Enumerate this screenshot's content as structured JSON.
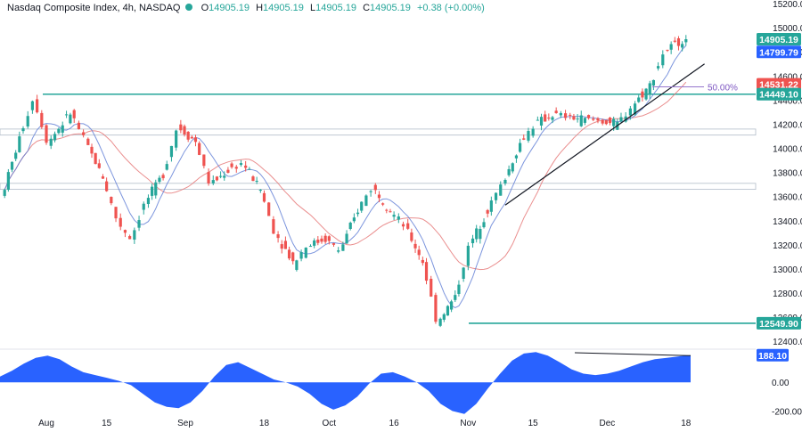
{
  "header": {
    "title": "Nasdaq Composite Index, 4h, NASDAQ",
    "open_label": "O",
    "open": "14905.19",
    "high_label": "H",
    "high": "14905.19",
    "low_label": "L",
    "low": "14905.19",
    "close_label": "C",
    "close": "14905.19",
    "change": "+0.38 (+0.00%)"
  },
  "colors": {
    "up": "#26a69a",
    "down": "#ef5350",
    "hline": "#26a69a",
    "ma_fast": "#5b7bd5",
    "ma_slow": "#e57373",
    "oscillator": "#2962ff",
    "trendline": "#131722"
  },
  "chart_data": [
    {
      "type": "candlestick",
      "timeframe": "4h",
      "y_axis_ticks": [
        "15200.00",
        "15000.00",
        "14800.00",
        "14600.00",
        "14400.00",
        "14200.00",
        "14000.00",
        "13800.00",
        "13600.00",
        "13400.00",
        "13200.00",
        "13000.00",
        "12800.00",
        "12600.00",
        "12400.00"
      ],
      "ylim": [
        12350,
        15230
      ],
      "x_axis_ticks": [
        "Aug",
        "15",
        "Sep",
        "18",
        "Oct",
        "16",
        "Nov",
        "15",
        "Dec",
        "18"
      ],
      "price_labels": [
        {
          "text": "14905.19",
          "value": 14905.19,
          "color": "#26a69a"
        },
        {
          "text": "14799.79",
          "value": 14799.79,
          "color": "#2962ff"
        },
        {
          "text": "14531.22",
          "value": 14531.22,
          "color": "#ef5350"
        },
        {
          "text": "14449.10",
          "value": 14449.1,
          "color": "#26a69a"
        },
        {
          "text": "12549.90",
          "value": 12549.9,
          "color": "#26a69a"
        }
      ],
      "horizontal_levels": [
        14449.1,
        12549.9
      ],
      "zones": [
        [
          14110,
          14160
        ],
        [
          13660,
          13710
        ]
      ],
      "fib_label": "50.00%",
      "fib_level": 14510,
      "key_points": [
        {
          "date": "Jul 24",
          "close": 13600
        },
        {
          "date": "Jul 28",
          "close": 14100
        },
        {
          "date": "Jul 31",
          "close": 14420
        },
        {
          "date": "Aug 3",
          "close": 14050
        },
        {
          "date": "Aug 8",
          "close": 14300
        },
        {
          "date": "Aug 11",
          "close": 14060
        },
        {
          "date": "Aug 15",
          "close": 13750
        },
        {
          "date": "Aug 18",
          "close": 13400
        },
        {
          "date": "Aug 21",
          "close": 13250
        },
        {
          "date": "Aug 24",
          "close": 13550
        },
        {
          "date": "Aug 28",
          "close": 13800
        },
        {
          "date": "Aug 31",
          "close": 14180
        },
        {
          "date": "Sep 4",
          "close": 14050
        },
        {
          "date": "Sep 7",
          "close": 13700
        },
        {
          "date": "Sep 11",
          "close": 13820
        },
        {
          "date": "Sep 14",
          "close": 13880
        },
        {
          "date": "Sep 18",
          "close": 13650
        },
        {
          "date": "Sep 21",
          "close": 13300
        },
        {
          "date": "Sep 25",
          "close": 13050
        },
        {
          "date": "Sep 28",
          "close": 13200
        },
        {
          "date": "Oct 2",
          "close": 13250
        },
        {
          "date": "Oct 5",
          "close": 13150
        },
        {
          "date": "Oct 9",
          "close": 13500
        },
        {
          "date": "Oct 12",
          "close": 13680
        },
        {
          "date": "Oct 16",
          "close": 13480
        },
        {
          "date": "Oct 19",
          "close": 13350
        },
        {
          "date": "Oct 23",
          "close": 13050
        },
        {
          "date": "Oct 26",
          "close": 12560
        },
        {
          "date": "Oct 30",
          "close": 12780
        },
        {
          "date": "Nov 2",
          "close": 13200
        },
        {
          "date": "Nov 6",
          "close": 13500
        },
        {
          "date": "Nov 9",
          "close": 13700
        },
        {
          "date": "Nov 13",
          "close": 14050
        },
        {
          "date": "Nov 16",
          "close": 14200
        },
        {
          "date": "Nov 20",
          "close": 14280
        },
        {
          "date": "Nov 23",
          "close": 14260
        },
        {
          "date": "Nov 27",
          "close": 14240
        },
        {
          "date": "Nov 30",
          "close": 14230
        },
        {
          "date": "Dec 4",
          "close": 14200
        },
        {
          "date": "Dec 7",
          "close": 14350
        },
        {
          "date": "Dec 11",
          "close": 14530
        },
        {
          "date": "Dec 14",
          "close": 14800
        },
        {
          "date": "Dec 18",
          "close": 14905
        }
      ],
      "trendline": [
        {
          "date": "Nov 9",
          "value": 13530
        },
        {
          "date": "Dec 22",
          "value": 14700
        }
      ]
    },
    {
      "type": "area",
      "name": "oscillator",
      "y_axis_ticks": [
        "0.00",
        "-200.00"
      ],
      "ylim": [
        -240,
        230
      ],
      "last_value_label": "188.10",
      "last_value": 188.1,
      "values": [
        40,
        80,
        130,
        170,
        185,
        160,
        110,
        70,
        50,
        30,
        10,
        -20,
        -80,
        -140,
        -170,
        -180,
        -140,
        -60,
        40,
        120,
        140,
        100,
        60,
        20,
        0,
        -30,
        -80,
        -150,
        -190,
        -160,
        -100,
        -10,
        60,
        70,
        40,
        0,
        -60,
        -150,
        -200,
        -220,
        -150,
        -40,
        60,
        150,
        200,
        210,
        185,
        140,
        90,
        60,
        50,
        60,
        80,
        110,
        140,
        160,
        170,
        180,
        188
      ]
    }
  ]
}
